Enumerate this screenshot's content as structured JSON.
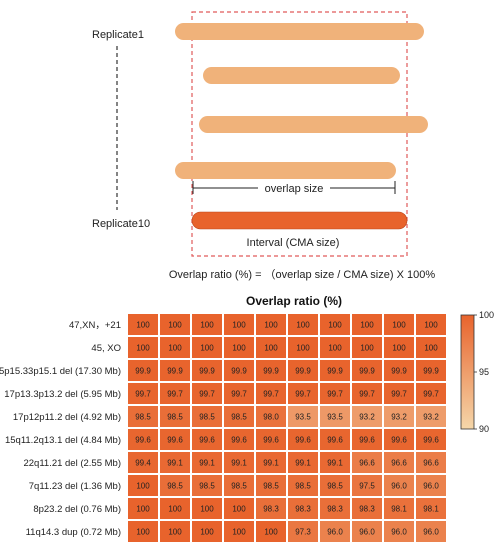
{
  "diagram": {
    "replicate_top_label": "Replicate1",
    "replicate_bottom_label": "Replicate10",
    "overlap_label": "overlap size",
    "interval_label": "Interval (CMA size)",
    "formula": "Overlap ratio (%) = （overlap size / CMA size) X 100%",
    "colors": {
      "replicate_bar": "#f0b27a",
      "interval_bar": "#e8632c",
      "dashed_box": "#e05a5a"
    }
  },
  "chart_data": {
    "type": "heatmap",
    "title": "Overlap ratio (%)",
    "rows": [
      "47,XN，+21",
      "45, XO",
      "5p15.33p15.1 del (17.30 Mb)",
      "17p13.3p13.2 del (5.95 Mb)",
      "17p12p11.2 del (4.92 Mb)",
      "15q11.2q13.1 del (4.84 Mb)",
      "22q11.21 del (2.55 Mb)",
      "7q11.23 del (1.36 Mb)",
      "8p23.2 del (0.76 Mb)",
      "11q14.3 dup (0.72 Mb)"
    ],
    "values": [
      [
        "100",
        "100",
        "100",
        "100",
        "100",
        "100",
        "100",
        "100",
        "100",
        "100"
      ],
      [
        "100",
        "100",
        "100",
        "100",
        "100",
        "100",
        "100",
        "100",
        "100",
        "100"
      ],
      [
        "99.9",
        "99.9",
        "99.9",
        "99.9",
        "99.9",
        "99.9",
        "99.9",
        "99.9",
        "99.9",
        "99.9"
      ],
      [
        "99.7",
        "99.7",
        "99.7",
        "99.7",
        "99.7",
        "99.7",
        "99.7",
        "99.7",
        "99.7",
        "99.7"
      ],
      [
        "98.5",
        "98.5",
        "98.5",
        "98.5",
        "98.0",
        "93.5",
        "93.5",
        "93.2",
        "93.2",
        "93.2"
      ],
      [
        "99.6",
        "99.6",
        "99.6",
        "99.6",
        "99.6",
        "99.6",
        "99.6",
        "99.6",
        "99.6",
        "99.6"
      ],
      [
        "99.4",
        "99.1",
        "99.1",
        "99.1",
        "99.1",
        "99.1",
        "99.1",
        "96.6",
        "96.6",
        "96.6"
      ],
      [
        "100",
        "98.5",
        "98.5",
        "98.5",
        "98.5",
        "98.5",
        "98.5",
        "97.5",
        "96.0",
        "96.0"
      ],
      [
        "100",
        "100",
        "100",
        "100",
        "98.3",
        "98.3",
        "98.3",
        "98.3",
        "98.1",
        "98.1"
      ],
      [
        "100",
        "100",
        "100",
        "100",
        "100",
        "97.3",
        "96.0",
        "96.0",
        "96.0",
        "96.0"
      ]
    ],
    "colorbar": {
      "range": [
        90,
        100
      ],
      "ticks": [
        "100",
        "95",
        "90"
      ]
    },
    "colors": {
      "high": "#e8632c",
      "low": "#f5d7aa"
    }
  }
}
